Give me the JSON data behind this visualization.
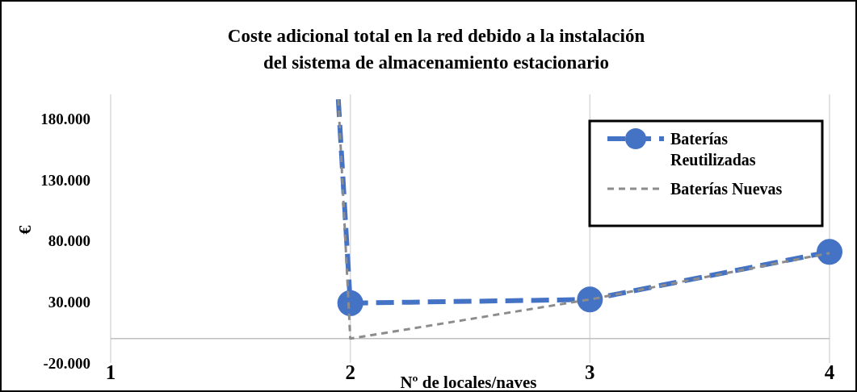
{
  "chart_data": {
    "type": "line",
    "title": "Coste adicional total en la red debido a la instalación del sistema de almacenamiento estacionario",
    "xlabel": "Nº de locales/naves",
    "ylabel": "€",
    "xlim": [
      1,
      4
    ],
    "xticks": [
      1,
      2,
      3,
      4
    ],
    "ylim": [
      -20000,
      200000
    ],
    "yticks": [
      {
        "value": -20000,
        "label": "-20.000"
      },
      {
        "value": 30000,
        "label": "30.000"
      },
      {
        "value": 80000,
        "label": "80.000"
      },
      {
        "value": 130000,
        "label": "130.000"
      },
      {
        "value": 180000,
        "label": "180.000"
      }
    ],
    "grid": "x",
    "legend": "top right",
    "line_style": "dashed",
    "series": [
      {
        "color": "#4472c4",
        "x": [
          1.95,
          2
        ],
        "values": [
          196000,
          29000
        ]
      },
      {
        "name": "Baterías Reutilizadas",
        "color": "#4472c4",
        "x": [
          2,
          3,
          4
        ],
        "values": [
          29000,
          32000,
          71000
        ],
        "marker": "circle"
      },
      {
        "name": "Baterías Nuevas",
        "color": "#8c8c8c",
        "x": [
          1.95,
          2,
          3,
          4
        ],
        "values": [
          196000,
          0,
          32000,
          70000
        ],
        "marker": "none"
      }
    ]
  }
}
